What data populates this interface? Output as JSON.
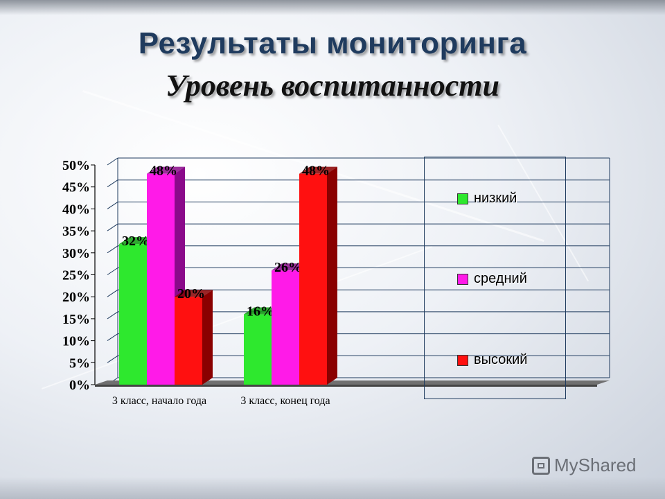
{
  "slide": {
    "title": "Результаты  мониторинга",
    "subtitle": "Уровень воспитанности"
  },
  "chart_data": {
    "type": "bar",
    "categories": [
      "3 класс, начало года",
      "3 класс, конец года"
    ],
    "series": [
      {
        "name": "низкий",
        "values": [
          32,
          16
        ],
        "color": "#2ee82e",
        "side": "#0d9a0d"
      },
      {
        "name": "средний",
        "values": [
          48,
          26
        ],
        "color": "#ff1ae8",
        "side": "#8a0a8a"
      },
      {
        "name": "высокий",
        "values": [
          20,
          48
        ],
        "color": "#ff1010",
        "side": "#8a0000"
      }
    ],
    "data_labels": [
      [
        "32%",
        "16%"
      ],
      [
        "48%",
        "26%"
      ],
      [
        "20%",
        "48%"
      ]
    ],
    "ylim": [
      0,
      50
    ],
    "yticks": [
      "0%",
      "5%",
      "10%",
      "15%",
      "20%",
      "25%",
      "30%",
      "35%",
      "40%",
      "45%",
      "50%"
    ],
    "grid": true,
    "legend_position": "right"
  },
  "watermark": {
    "text": "MyShared"
  }
}
